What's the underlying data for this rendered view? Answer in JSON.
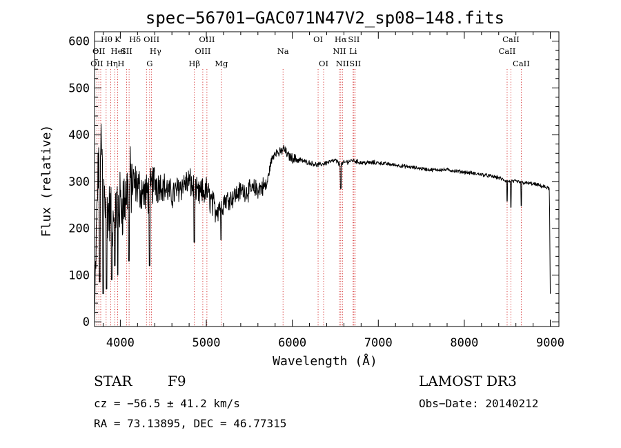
{
  "chart_data": {
    "type": "line",
    "title": "spec−56701−GAC071N47V2_sp08−148.fits",
    "xlabel": "Wavelength (Å)",
    "ylabel": "Flux (relative)",
    "xlim": [
      3700,
      9100
    ],
    "ylim": [
      -10,
      620
    ],
    "x_ticks": [
      4000,
      5000,
      6000,
      7000,
      8000,
      9000
    ],
    "y_ticks": [
      0,
      100,
      200,
      300,
      400,
      500,
      600
    ],
    "spectrum_anchors": {
      "x": [
        3700,
        3730,
        3760,
        3800,
        3850,
        3900,
        3950,
        4000,
        4050,
        4100,
        4200,
        4300,
        4400,
        4500,
        4600,
        4700,
        4800,
        4900,
        5000,
        5100,
        5200,
        5300,
        5400,
        5500,
        5600,
        5700,
        5750,
        5800,
        5850,
        5900,
        5950,
        6000,
        6100,
        6200,
        6300,
        6400,
        6500,
        6563,
        6600,
        6700,
        6800,
        7000,
        7200,
        7400,
        7600,
        7800,
        8000,
        8200,
        8400,
        8500,
        8600,
        8700,
        8800,
        8900,
        8990,
        9000
      ],
      "y": [
        5,
        250,
        420,
        300,
        240,
        220,
        250,
        250,
        260,
        300,
        290,
        270,
        300,
        290,
        270,
        290,
        300,
        270,
        280,
        240,
        260,
        265,
        280,
        280,
        285,
        290,
        340,
        365,
        360,
        370,
        355,
        350,
        345,
        340,
        335,
        340,
        345,
        335,
        340,
        345,
        340,
        340,
        335,
        330,
        325,
        325,
        320,
        315,
        308,
        300,
        300,
        297,
        295,
        290,
        285,
        60
      ]
    },
    "absorption_dips": [
      {
        "x": 3760,
        "y": 85
      },
      {
        "x": 3800,
        "y": 60
      },
      {
        "x": 3840,
        "y": 70
      },
      {
        "x": 3900,
        "y": 90
      },
      {
        "x": 3935,
        "y": 120
      },
      {
        "x": 3970,
        "y": 100
      },
      {
        "x": 4100,
        "y": 130
      },
      {
        "x": 4340,
        "y": 120
      },
      {
        "x": 4860,
        "y": 170
      },
      {
        "x": 5170,
        "y": 175
      },
      {
        "x": 6563,
        "y": 285
      },
      {
        "x": 8498,
        "y": 258
      },
      {
        "x": 8542,
        "y": 245
      },
      {
        "x": 8662,
        "y": 248
      }
    ],
    "spectral_lines": [
      {
        "x": 3727,
        "label": "OII",
        "row": 3,
        "anchor": "middle"
      },
      {
        "x": 3750,
        "label": "OII",
        "row": 2,
        "anchor": "middle"
      },
      {
        "x": 3772,
        "label": "Hθ",
        "row": 1,
        "anchor": "start"
      },
      {
        "x": 3835,
        "label": "Hη",
        "row": 3,
        "anchor": "start"
      },
      {
        "x": 3889,
        "label": "HeI",
        "row": 2,
        "anchor": "start"
      },
      {
        "x": 3934,
        "label": "K",
        "row": 1,
        "anchor": "start"
      },
      {
        "x": 3968,
        "label": "H",
        "row": 3,
        "anchor": "start"
      },
      {
        "x": 4072,
        "label": "SII",
        "row": 2,
        "anchor": "middle"
      },
      {
        "x": 4102,
        "label": "Hδ",
        "row": 1,
        "anchor": "start"
      },
      {
        "x": 4304,
        "label": "G",
        "row": 3,
        "anchor": "start"
      },
      {
        "x": 4341,
        "label": "Hγ",
        "row": 2,
        "anchor": "start"
      },
      {
        "x": 4363,
        "label": "OIII",
        "row": 1,
        "anchor": "middle"
      },
      {
        "x": 4861,
        "label": "Hβ",
        "row": 3,
        "anchor": "middle"
      },
      {
        "x": 4959,
        "label": "OIII",
        "row": 2,
        "anchor": "middle"
      },
      {
        "x": 5007,
        "label": "OIII",
        "row": 1,
        "anchor": "middle"
      },
      {
        "x": 5175,
        "label": "Mg",
        "row": 3,
        "anchor": "middle"
      },
      {
        "x": 5892,
        "label": "Na",
        "row": 2,
        "anchor": "middle"
      },
      {
        "x": 6300,
        "label": "OI",
        "row": 1,
        "anchor": "middle"
      },
      {
        "x": 6364,
        "label": "OI",
        "row": 3,
        "anchor": "middle"
      },
      {
        "x": 6548,
        "label": "NII",
        "row": 2,
        "anchor": "middle"
      },
      {
        "x": 6563,
        "label": "Hα",
        "row": 1,
        "anchor": "middle"
      },
      {
        "x": 6583,
        "label": "NII",
        "row": 3,
        "anchor": "middle"
      },
      {
        "x": 6707,
        "label": "Li",
        "row": 2,
        "anchor": "middle"
      },
      {
        "x": 6716,
        "label": "SII",
        "row": 1,
        "anchor": "middle"
      },
      {
        "x": 6731,
        "label": "SII",
        "row": 3,
        "anchor": "middle"
      },
      {
        "x": 8498,
        "label": "CaII",
        "row": 2,
        "anchor": "middle"
      },
      {
        "x": 8542,
        "label": "CaII",
        "row": 1,
        "anchor": "middle"
      },
      {
        "x": 8662,
        "label": "CaII",
        "row": 3,
        "anchor": "middle"
      }
    ]
  },
  "info": {
    "object_class": "STAR",
    "subclass": "F9",
    "survey": "LAMOST DR3",
    "cz": "cz = −56.5 ± 41.2 km/s",
    "obs_date": "Obs−Date: 20140212",
    "coords": "RA =  73.13895, DEC =  46.77315"
  },
  "colors": {
    "axis": "#000000",
    "spectrum": "#000000",
    "line_marker": "#cc0000"
  }
}
